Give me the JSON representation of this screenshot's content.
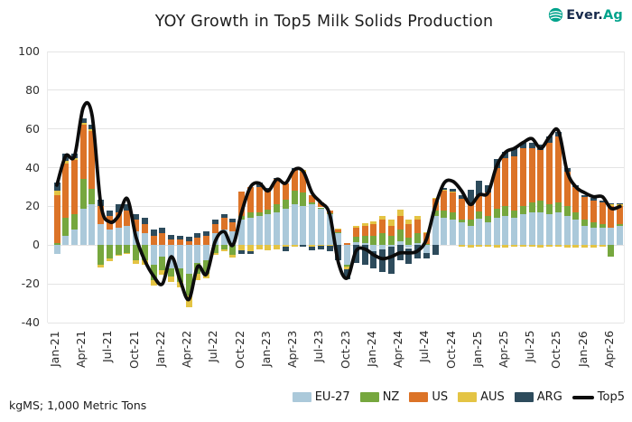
{
  "header": {
    "title": "YOY Growth in Top5 Milk Solids Production",
    "logo": {
      "word1": "Ever.",
      "word2": "Ag",
      "navy": "#16294b",
      "teal": "#00a38c"
    }
  },
  "footer": {
    "note": "kgMS; 1,000 Metric Tons"
  },
  "legend": [
    {
      "label": "EU-27",
      "type": "box",
      "color": "#abc9da"
    },
    {
      "label": "NZ",
      "type": "box",
      "color": "#76a73e"
    },
    {
      "label": "US",
      "type": "box",
      "color": "#dc7327"
    },
    {
      "label": "AUS",
      "type": "box",
      "color": "#e4c444"
    },
    {
      "label": "ARG",
      "type": "box",
      "color": "#2d4b5c"
    },
    {
      "label": "Top5",
      "type": "line",
      "color": "#0c0c0c"
    }
  ],
  "chart_data": {
    "type": "bar",
    "subtype": "stacked-bar-with-line-overlay",
    "title": "YOY Growth in Top5 Milk Solids Production",
    "ylabel": "",
    "xlabel": "",
    "unit_note": "kgMS; 1,000 Metric Tons",
    "ylim": [
      -40,
      100
    ],
    "y_ticks": [
      100,
      80,
      60,
      40,
      20,
      0,
      -20,
      -40
    ],
    "grid": "horizontal",
    "legend_position": "bottom-right",
    "months": [
      "Jan-21",
      "Feb-21",
      "Mar-21",
      "Apr-21",
      "May-21",
      "Jun-21",
      "Jul-21",
      "Aug-21",
      "Sep-21",
      "Oct-21",
      "Nov-21",
      "Dec-21",
      "Jan-22",
      "Feb-22",
      "Mar-22",
      "Apr-22",
      "May-22",
      "Jun-22",
      "Jul-22",
      "Aug-22",
      "Sep-22",
      "Oct-22",
      "Nov-22",
      "Dec-22",
      "Jan-23",
      "Feb-23",
      "Mar-23",
      "Apr-23",
      "May-23",
      "Jun-23",
      "Jul-23",
      "Aug-23",
      "Sep-23",
      "Oct-23",
      "Nov-23",
      "Dec-23",
      "Jan-24",
      "Feb-24",
      "Mar-24",
      "Apr-24",
      "May-24",
      "Jun-24",
      "Jul-24",
      "Aug-24",
      "Sep-24",
      "Oct-24",
      "Nov-24",
      "Dec-24",
      "Jan-25",
      "Feb-25",
      "Mar-25",
      "Apr-25",
      "May-25",
      "Jun-25",
      "Jul-25",
      "Aug-25",
      "Sep-25",
      "Oct-25",
      "Nov-25",
      "Dec-25",
      "Jan-26",
      "Feb-26",
      "Mar-26",
      "Apr-26",
      "May-26"
    ],
    "series": [
      {
        "name": "EU-27",
        "color": "#abc9da",
        "values": [
          -4.5,
          5,
          8,
          19,
          21,
          11,
          8,
          9,
          10,
          7,
          6,
          -10,
          -6,
          -12,
          -12,
          -15,
          -9,
          -8,
          6,
          8,
          7,
          13,
          14,
          15,
          16,
          17,
          19,
          21,
          20,
          21,
          19,
          16,
          6,
          -10,
          1.5,
          1,
          -3,
          -2,
          -1,
          2,
          -1.5,
          1,
          -4,
          15,
          14,
          13,
          12,
          10,
          13.5,
          12,
          14,
          15,
          14,
          16,
          17,
          17,
          16,
          17,
          15,
          13,
          10,
          9,
          9,
          9,
          10
        ]
      },
      {
        "name": "NZ",
        "color": "#76a73e",
        "values": [
          1,
          9,
          8,
          15,
          8,
          -10,
          -7,
          -5,
          -4,
          -8,
          -8,
          -8,
          -7,
          -4,
          -7,
          -11,
          -6,
          -7,
          -4,
          -2,
          -5,
          2,
          3,
          2,
          2.5,
          4,
          4.5,
          7,
          7,
          1,
          0.5,
          0.5,
          0.5,
          -1,
          3,
          4,
          5,
          6,
          5,
          6,
          4,
          5,
          0.5,
          3,
          4,
          4,
          1,
          3,
          4,
          3,
          5,
          5,
          4,
          4,
          5,
          6,
          5,
          5,
          5,
          4,
          3,
          3,
          2,
          -6,
          1
        ]
      },
      {
        "name": "US",
        "color": "#dc7327",
        "values": [
          25,
          28,
          28,
          28,
          30,
          9,
          7,
          8,
          8,
          6,
          5,
          5,
          6,
          3,
          3,
          2,
          4,
          5,
          5,
          6,
          5,
          12.5,
          13,
          13,
          9,
          13,
          8.5,
          11,
          11,
          4,
          2.5,
          1.5,
          1.5,
          1,
          4.5,
          5,
          6,
          7,
          5,
          7,
          7,
          7,
          5.5,
          6,
          10,
          10,
          11,
          8.5,
          8.5,
          12,
          21,
          25,
          28,
          30,
          28,
          26,
          32,
          34,
          18,
          13,
          12,
          11,
          11,
          11,
          9
        ]
      },
      {
        "name": "AUS",
        "color": "#e4c444",
        "values": [
          2,
          1.5,
          1,
          1,
          1,
          -1.5,
          -1.5,
          -0.5,
          -0.5,
          -1.5,
          -2,
          -3,
          -2.5,
          -3,
          -3,
          -6,
          -3,
          -2,
          -1,
          -1,
          -1.5,
          -2.5,
          -3,
          -2,
          -2.5,
          -2,
          -1,
          -1,
          1,
          -1,
          -0.5,
          -0.5,
          0.5,
          -1.5,
          1,
          1.5,
          1.5,
          2,
          3,
          3.5,
          2,
          2,
          0.5,
          0.5,
          0.5,
          0.5,
          -1,
          -1.5,
          -1,
          -1,
          -1.5,
          -1.5,
          -1,
          -1,
          -1,
          -1.5,
          -1,
          -1,
          -1.5,
          -1.5,
          -1.5,
          -1.5,
          -1,
          1,
          1
        ]
      },
      {
        "name": "ARG",
        "color": "#2d4b5c",
        "values": [
          4.5,
          4,
          2.5,
          2.5,
          2,
          3.5,
          3,
          4,
          3,
          3,
          3,
          3,
          3,
          2.5,
          2,
          2.5,
          2,
          2,
          2,
          2,
          1.5,
          -2,
          -1.5,
          2.5,
          2,
          0.5,
          -2,
          0.7,
          -1,
          -1.5,
          -1.5,
          -2.5,
          -8,
          -5,
          -9,
          -10,
          -9,
          -12,
          -14,
          -8,
          -8,
          -7,
          -3,
          -5,
          1,
          1.5,
          2,
          7,
          7.5,
          4,
          4.5,
          3,
          4,
          3,
          3,
          3,
          3,
          2.5,
          2,
          1,
          1,
          1.5,
          1,
          0.5,
          0.5
        ]
      }
    ],
    "line": {
      "name": "Top5",
      "color": "#0c0c0c",
      "values": [
        31,
        46,
        46,
        71,
        67,
        21,
        12,
        15,
        24,
        4,
        -8,
        -16,
        -20,
        -6,
        -18,
        -28,
        -11,
        -15,
        2,
        7,
        0,
        17,
        30,
        32,
        28,
        34,
        32,
        39,
        38,
        27,
        22,
        16,
        -9,
        -17,
        -3,
        -2,
        -5,
        -7,
        -6,
        -4,
        -4,
        -3,
        3,
        20,
        32,
        33,
        28,
        21,
        26,
        27,
        41,
        48,
        50,
        53,
        55,
        50,
        56,
        59,
        38,
        30,
        27,
        25,
        25,
        19,
        20
      ]
    }
  }
}
